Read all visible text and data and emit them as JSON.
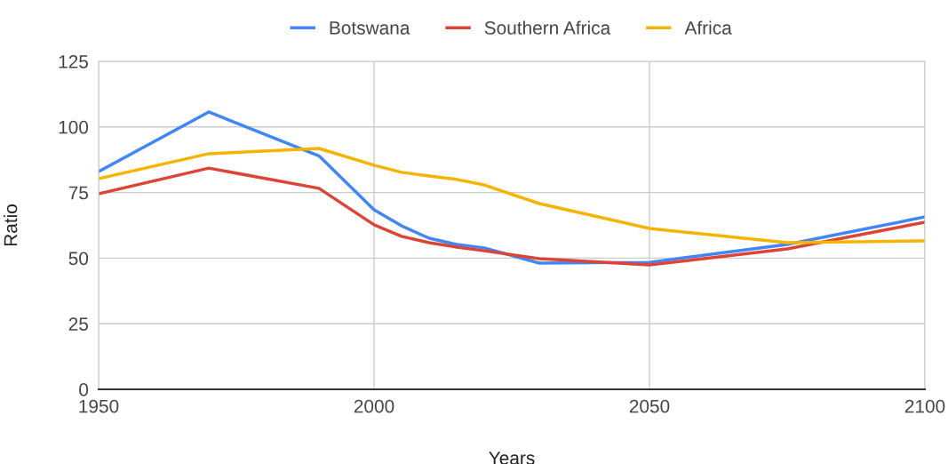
{
  "chart_data": {
    "type": "line",
    "xlabel": "Years",
    "ylabel": "Ratio",
    "x": [
      1950,
      1970,
      1990,
      2000,
      2005,
      2010,
      2015,
      2020,
      2030,
      2050,
      2075,
      2100
    ],
    "series": [
      {
        "name": "Botswana",
        "color": "#4285f4",
        "values": [
          83,
          105.7,
          89,
          68.4,
          62.3,
          57.6,
          55.2,
          53.9,
          48.1,
          48.4,
          55.2,
          65.7
        ]
      },
      {
        "name": "Southern Africa",
        "color": "#db4437",
        "values": [
          74.5,
          84.3,
          76.6,
          62.7,
          58.3,
          55.9,
          54.2,
          52.8,
          49.8,
          47.4,
          53.5,
          63.7
        ]
      },
      {
        "name": "Africa",
        "color": "#f4b400",
        "values": [
          80.3,
          89.8,
          91.8,
          85.4,
          82.7,
          81.3,
          80,
          77.9,
          70.8,
          61.3,
          55.9,
          56.6
        ]
      }
    ],
    "xlim": [
      1950,
      2100
    ],
    "xticks": [
      1950,
      2000,
      2050,
      2100
    ],
    "ylim": [
      0,
      125
    ],
    "yticks": [
      0,
      25,
      50,
      75,
      100,
      125
    ],
    "grid": true,
    "legend": "top",
    "marker": "none",
    "line_style": "solid"
  }
}
